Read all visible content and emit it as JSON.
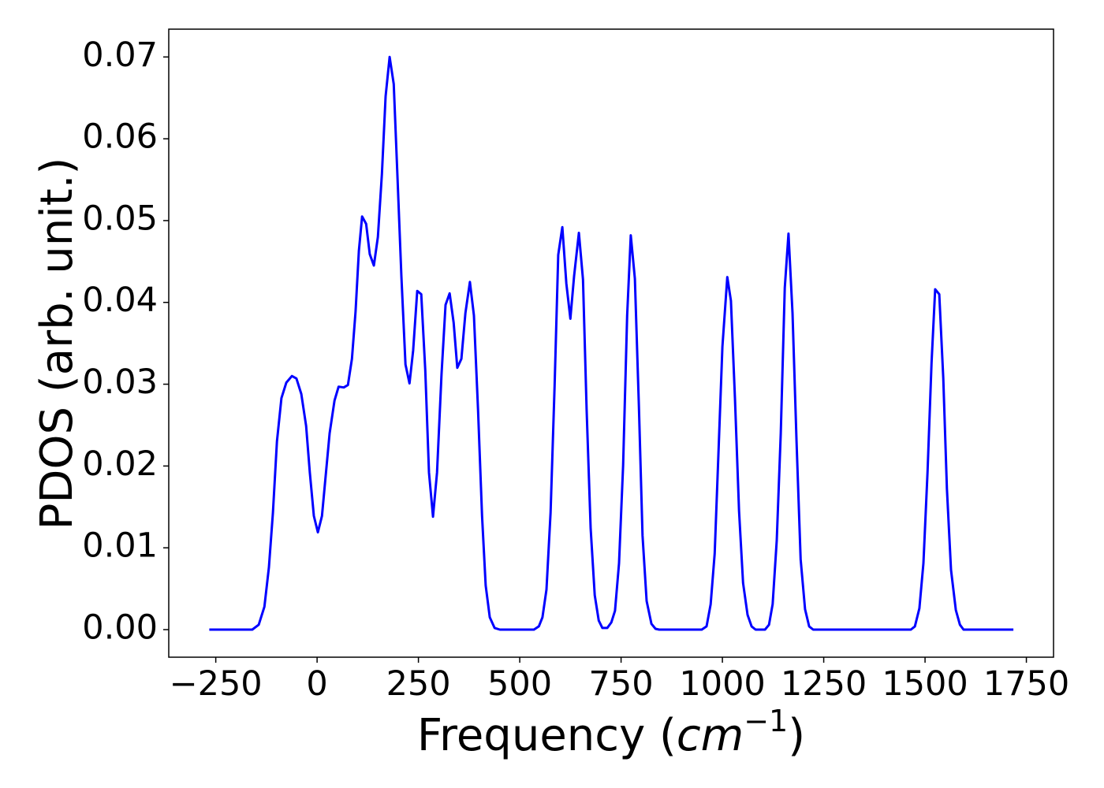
{
  "chart_data": {
    "type": "line",
    "ylabel": "PDOS (arb. unit.)",
    "xlabel": [
      "Frequency (",
      "cm",
      "−1",
      ")"
    ],
    "x": [
      -266,
      -160,
      -144,
      -130,
      -119,
      -109,
      -99,
      -88,
      -76,
      -62,
      -51,
      -39,
      -27,
      -18,
      -8,
      2,
      12,
      21,
      31,
      43,
      53,
      66,
      76,
      86,
      95,
      103,
      111,
      121,
      130,
      140,
      150,
      160,
      169,
      179,
      189,
      198,
      208,
      218,
      228,
      237,
      247,
      257,
      267,
      276,
      286,
      296,
      307,
      317,
      327,
      337,
      346,
      356,
      366,
      377,
      387,
      397,
      407,
      416,
      426,
      438,
      451,
      535,
      547,
      556,
      566,
      576,
      586,
      595,
      605,
      615,
      625,
      634,
      646,
      656,
      665,
      675,
      685,
      695,
      704,
      716,
      726,
      735,
      745,
      755,
      765,
      774,
      784,
      794,
      803,
      813,
      825,
      835,
      844,
      949,
      961,
      971,
      981,
      990,
      1000,
      1012,
      1021,
      1031,
      1041,
      1051,
      1062,
      1072,
      1082,
      1105,
      1115,
      1124,
      1134,
      1144,
      1154,
      1163,
      1173,
      1183,
      1193,
      1204,
      1214,
      1224,
      1465,
      1475,
      1486,
      1496,
      1506,
      1516,
      1525,
      1535,
      1545,
      1554,
      1564,
      1576,
      1586,
      1595,
      1718
    ],
    "series": [
      {
        "color": "#0000ff",
        "values": [
          0,
          0,
          0.0006,
          0.0028,
          0.0076,
          0.0143,
          0.023,
          0.0283,
          0.0302,
          0.031,
          0.0307,
          0.0288,
          0.0249,
          0.0192,
          0.0139,
          0.0119,
          0.0139,
          0.0187,
          0.024,
          0.028,
          0.0297,
          0.0296,
          0.0299,
          0.0331,
          0.0389,
          0.0463,
          0.0505,
          0.0496,
          0.0459,
          0.0445,
          0.048,
          0.0557,
          0.0652,
          0.07,
          0.0667,
          0.0557,
          0.0432,
          0.0324,
          0.0301,
          0.0341,
          0.0414,
          0.041,
          0.0317,
          0.0192,
          0.0138,
          0.0192,
          0.0312,
          0.0397,
          0.0411,
          0.0375,
          0.032,
          0.0331,
          0.0387,
          0.0425,
          0.0384,
          0.0269,
          0.0139,
          0.0054,
          0.0015,
          0.0002,
          0,
          0,
          0.0004,
          0.0015,
          0.0049,
          0.0143,
          0.0298,
          0.0458,
          0.0492,
          0.0423,
          0.038,
          0.0432,
          0.0485,
          0.0428,
          0.0269,
          0.0124,
          0.0042,
          0.0011,
          0.0002,
          0.0002,
          0.0009,
          0.0023,
          0.0081,
          0.0201,
          0.0384,
          0.0482,
          0.0429,
          0.0273,
          0.0115,
          0.0035,
          0.0007,
          0.0001,
          0,
          0,
          0.0004,
          0.0031,
          0.0093,
          0.0211,
          0.0346,
          0.0431,
          0.0402,
          0.0283,
          0.0145,
          0.0057,
          0.0018,
          0.0004,
          0,
          0,
          0.0006,
          0.0031,
          0.0109,
          0.024,
          0.0418,
          0.0484,
          0.0387,
          0.023,
          0.0086,
          0.0025,
          0.0004,
          0,
          0,
          0.0004,
          0.0026,
          0.0081,
          0.0192,
          0.0326,
          0.0416,
          0.041,
          0.0307,
          0.0172,
          0.0073,
          0.0024,
          0.0006,
          0,
          0
        ]
      }
    ],
    "xlim": [
      -366,
      1817
    ],
    "ylim": [
      -0.00337,
      0.0734
    ],
    "xticks": [
      {
        "value": -250,
        "label": "−250"
      },
      0,
      250,
      500,
      750,
      1000,
      1250,
      1500,
      1750
    ],
    "yticks": [
      {
        "value": 0,
        "label": "0.00"
      },
      {
        "value": 0.01,
        "label": "0.01"
      },
      {
        "value": 0.02,
        "label": "0.02"
      },
      {
        "value": 0.03,
        "label": "0.03"
      },
      {
        "value": 0.04,
        "label": "0.04"
      },
      {
        "value": 0.05,
        "label": "0.05"
      },
      {
        "value": 0.06,
        "label": "0.06"
      },
      {
        "value": 0.07,
        "label": "0.07"
      }
    ],
    "grid": false
  }
}
